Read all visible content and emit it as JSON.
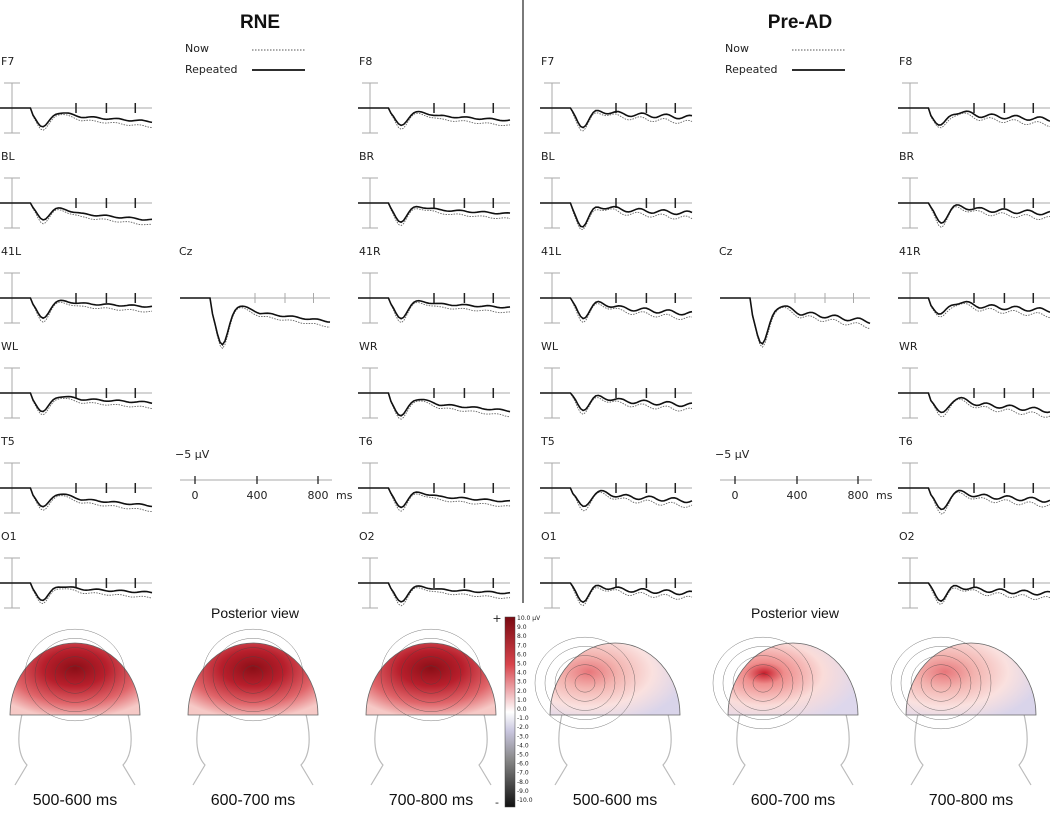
{
  "panels": [
    {
      "title": "RNE",
      "legend": [
        "Now",
        "Repeated"
      ],
      "channels": [
        "F7",
        "F8",
        "BL",
        "BR",
        "41L",
        "Cz",
        "41R",
        "WL",
        "WR",
        "T5",
        "T6",
        "O1",
        "O2"
      ],
      "scale": {
        "amplitude": "−5 µV",
        "times": [
          "0",
          "400",
          "800"
        ],
        "unit": "ms"
      },
      "topomap_title": "Posterior view",
      "topomaps": [
        "500-600 ms",
        "600-700 ms",
        "700-800 ms"
      ]
    },
    {
      "title": "Pre-AD",
      "legend": [
        "Now",
        "Repeated"
      ],
      "channels": [
        "F7",
        "F8",
        "BL",
        "BR",
        "41L",
        "Cz",
        "41R",
        "WL",
        "WR",
        "T5",
        "T6",
        "O1",
        "O2"
      ],
      "scale": {
        "amplitude": "−5 µV",
        "times": [
          "0",
          "400",
          "800"
        ],
        "unit": "ms"
      },
      "topomap_title": "Posterior view",
      "topomaps": [
        "500-600 ms",
        "600-700 ms",
        "700-800 ms"
      ]
    }
  ],
  "colorbar": {
    "top": "+",
    "bottom": "-",
    "labels": [
      "10.0 µV",
      "9.0",
      "8.0",
      "7.0",
      "6.0",
      "5.0",
      "4.0",
      "3.0",
      "2.0",
      "1.0",
      "0.0",
      "-1.0",
      "-2.0",
      "-3.0",
      "-4.0",
      "-5.0",
      "-6.0",
      "-7.0",
      "-8.0",
      "-9.0",
      "-10.0"
    ]
  }
}
